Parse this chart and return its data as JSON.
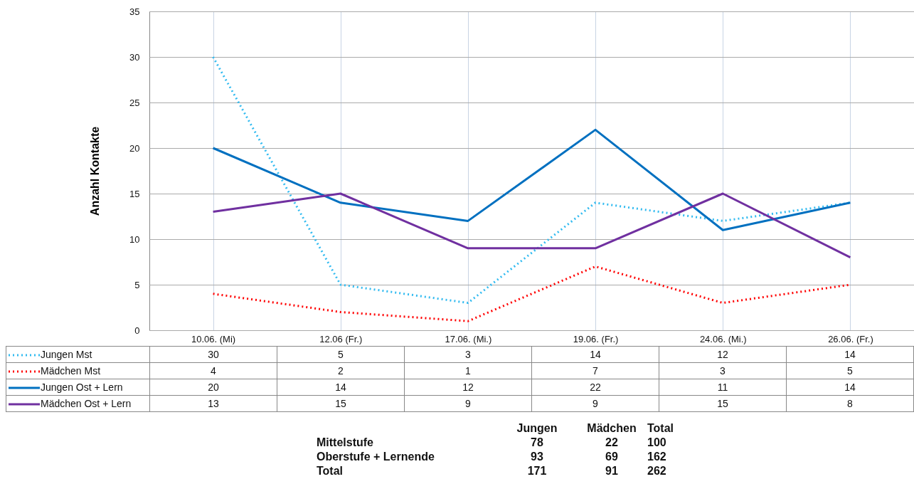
{
  "chart_data": {
    "type": "line",
    "ylabel": "Anzahl Kontakte",
    "categories": [
      "10.06. (Mi)",
      "12.06 (Fr.)",
      "17.06. (Mi.)",
      "19.06. (Fr.)",
      "24.06. (Mi.)",
      "26.06. (Fr.)"
    ],
    "series": [
      {
        "name": "Jungen Mst",
        "color": "#33bbf0",
        "line_style": "dotted",
        "values": [
          30,
          5,
          3,
          14,
          12,
          14
        ]
      },
      {
        "name": "Mädchen Mst",
        "color": "#ff0000",
        "line_style": "dotted",
        "values": [
          4,
          2,
          1,
          7,
          3,
          5
        ]
      },
      {
        "name": "Jungen Ost + Lern",
        "color": "#0070c0",
        "line_style": "solid",
        "values": [
          20,
          14,
          12,
          22,
          11,
          14
        ]
      },
      {
        "name": "Mädchen Ost + Lern",
        "color": "#7030a0",
        "line_style": "solid",
        "values": [
          13,
          15,
          9,
          9,
          15,
          8
        ]
      }
    ],
    "ylim": [
      0,
      35
    ],
    "yticks": [
      0,
      5,
      10,
      15,
      20,
      25,
      30,
      35
    ],
    "grid": true,
    "legend": "bottom",
    "data_labels": true,
    "annotations": [
      "\tJungen\tMädchen\tTotal",
      "Mittelstufe\t78\t22\t100",
      "Oberstufe + Lernende\t93\t69\t162",
      "Total\t171\t91\t262"
    ]
  }
}
